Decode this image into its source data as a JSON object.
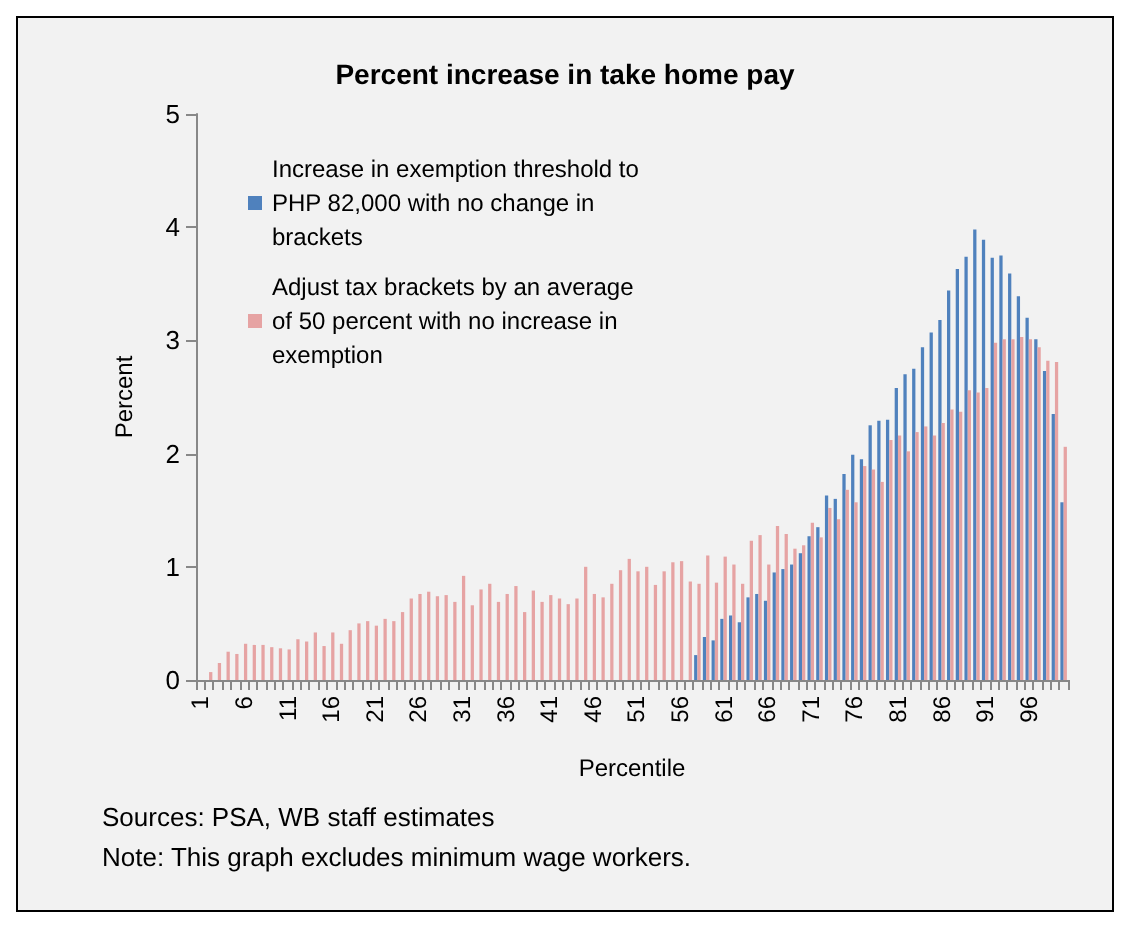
{
  "chart_data": {
    "type": "bar",
    "title": "Percent increase in take home pay",
    "xlabel": "Percentile",
    "ylabel": "Percent",
    "categories": [
      "1",
      null,
      null,
      null,
      null,
      "6",
      null,
      null,
      null,
      null,
      "11",
      null,
      null,
      null,
      null,
      "16",
      null,
      null,
      null,
      null,
      "21",
      null,
      null,
      null,
      null,
      "26",
      null,
      null,
      null,
      null,
      "31",
      null,
      null,
      null,
      null,
      "36",
      null,
      null,
      null,
      null,
      "41",
      null,
      null,
      null,
      null,
      "46",
      null,
      null,
      null,
      null,
      "51",
      null,
      null,
      null,
      null,
      "56",
      null,
      null,
      null,
      null,
      "61",
      null,
      null,
      null,
      null,
      "66",
      null,
      null,
      null,
      null,
      "71",
      null,
      null,
      null,
      null,
      "76",
      null,
      null,
      null,
      null,
      "81",
      null,
      null,
      null,
      null,
      "86",
      null,
      null,
      null,
      null,
      "91",
      null,
      null,
      null,
      null,
      "96",
      null,
      null,
      null,
      null
    ],
    "series": [
      {
        "name": "Increase in exemption threshold to PHP 82,000 with no change in brackets",
        "color": "#4f81bd",
        "values": [
          0,
          0,
          0,
          0,
          0,
          0,
          0,
          0,
          0,
          0,
          0,
          0,
          0,
          0,
          0,
          0,
          0,
          0,
          0,
          0,
          0,
          0,
          0,
          0,
          0,
          0,
          0,
          0,
          0,
          0,
          0,
          0,
          0,
          0,
          0,
          0,
          0,
          0,
          0,
          0,
          0,
          0,
          0,
          0,
          0,
          0,
          0,
          0,
          0,
          0,
          0,
          0,
          0,
          0,
          0,
          0,
          0,
          0.22,
          0.38,
          0.35,
          0.54,
          0.57,
          0.51,
          0.73,
          0.76,
          0.7,
          0.95,
          0.98,
          1.02,
          1.12,
          1.27,
          1.35,
          1.63,
          1.6,
          1.82,
          1.99,
          1.95,
          2.25,
          2.29,
          2.3,
          2.58,
          2.7,
          2.75,
          2.94,
          3.07,
          3.18,
          3.44,
          3.63,
          3.74,
          3.98,
          3.89,
          3.73,
          3.75,
          3.59,
          3.39,
          3.2,
          3.01,
          2.73,
          2.35,
          1.57
        ]
      },
      {
        "name": "Adjust tax brackets by an average of 50 percent with no increase in exemption",
        "color": "#e6a3a3",
        "values": [
          null,
          0.07,
          0.15,
          0.25,
          0.23,
          0.32,
          0.31,
          0.31,
          0.29,
          0.28,
          0.27,
          0.36,
          0.34,
          0.42,
          0.3,
          0.42,
          0.32,
          0.44,
          0.5,
          0.52,
          0.48,
          0.54,
          0.52,
          0.6,
          0.72,
          0.76,
          0.78,
          0.74,
          0.75,
          0.69,
          0.92,
          0.66,
          0.8,
          0.85,
          0.69,
          0.76,
          0.83,
          0.6,
          0.79,
          0.69,
          0.75,
          0.72,
          0.67,
          0.72,
          1.0,
          0.76,
          0.73,
          0.85,
          0.97,
          1.07,
          0.96,
          1.0,
          0.84,
          0.96,
          1.04,
          1.05,
          0.87,
          0.85,
          1.1,
          0.86,
          1.09,
          1.02,
          0.85,
          1.23,
          1.28,
          1.02,
          1.36,
          1.29,
          1.16,
          1.19,
          1.39,
          1.26,
          1.52,
          1.42,
          1.68,
          1.57,
          1.89,
          1.86,
          1.75,
          2.12,
          2.16,
          2.02,
          2.19,
          2.24,
          2.16,
          2.27,
          2.39,
          2.37,
          2.56,
          2.54,
          2.58,
          2.98,
          3.01,
          3.01,
          3.03,
          3.01,
          2.94,
          2.82,
          2.81,
          2.06
        ]
      }
    ],
    "ylim": [
      0,
      5
    ],
    "yticks": [
      0,
      1,
      2,
      3,
      4,
      5
    ],
    "grid": false,
    "legend": "top left",
    "annotations": [
      "Sources: PSA, WB staff estimates",
      "Note: This graph excludes minimum wage workers."
    ]
  }
}
